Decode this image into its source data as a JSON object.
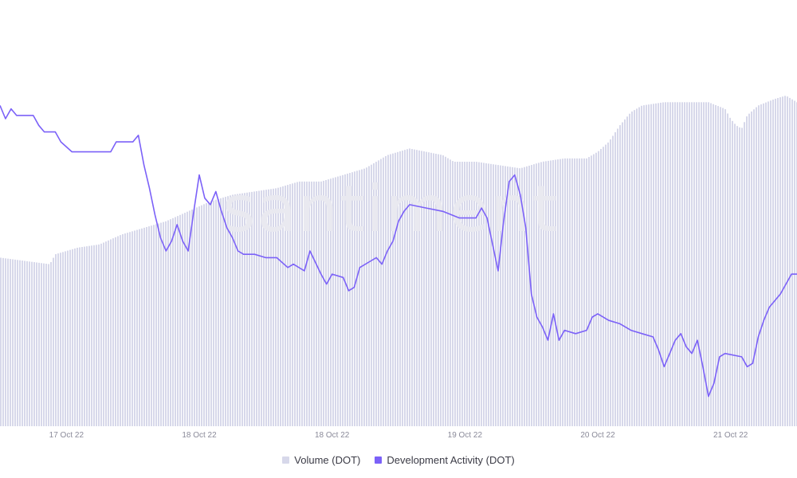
{
  "chart_data": {
    "type": "area",
    "watermark": "santiment",
    "x_ticks": [
      "17 Oct 22",
      "18 Oct 22",
      "18 Oct 22",
      "19 Oct 22",
      "20 Oct 22",
      "21 Oct 22"
    ],
    "x_tick_hours": [
      12,
      36,
      60,
      84,
      108,
      132
    ],
    "x_range_hours": [
      0,
      144
    ],
    "y_axis_labels": "none",
    "grid": false,
    "legend_position": "bottom-center",
    "series": [
      {
        "name": "Volume (DOT)",
        "kind": "bar-area",
        "color": "#d7d8ea",
        "points": [
          [
            0,
            0.51
          ],
          [
            9,
            0.49
          ],
          [
            10,
            0.52
          ],
          [
            14,
            0.54
          ],
          [
            18,
            0.55
          ],
          [
            22,
            0.58
          ],
          [
            26,
            0.6
          ],
          [
            30,
            0.62
          ],
          [
            34,
            0.65
          ],
          [
            38,
            0.68
          ],
          [
            42,
            0.7
          ],
          [
            46,
            0.71
          ],
          [
            50,
            0.72
          ],
          [
            54,
            0.74
          ],
          [
            58,
            0.74
          ],
          [
            62,
            0.76
          ],
          [
            66,
            0.78
          ],
          [
            70,
            0.82
          ],
          [
            74,
            0.84
          ],
          [
            77,
            0.83
          ],
          [
            80,
            0.82
          ],
          [
            82,
            0.8
          ],
          [
            86,
            0.8
          ],
          [
            90,
            0.79
          ],
          [
            94,
            0.78
          ],
          [
            98,
            0.8
          ],
          [
            102,
            0.81
          ],
          [
            106,
            0.81
          ],
          [
            108,
            0.83
          ],
          [
            110,
            0.86
          ],
          [
            112,
            0.91
          ],
          [
            114,
            0.95
          ],
          [
            116,
            0.97
          ],
          [
            120,
            0.98
          ],
          [
            124,
            0.98
          ],
          [
            128,
            0.98
          ],
          [
            131,
            0.96
          ],
          [
            132,
            0.93
          ],
          [
            133,
            0.91
          ],
          [
            134,
            0.9
          ],
          [
            135,
            0.94
          ],
          [
            137,
            0.97
          ],
          [
            140,
            0.99
          ],
          [
            142,
            1.0
          ],
          [
            144,
            0.98
          ]
        ]
      },
      {
        "name": "Development Activity (DOT)",
        "kind": "line",
        "color": "#7b61f8",
        "points": [
          [
            0,
            0.97
          ],
          [
            1,
            0.93
          ],
          [
            2,
            0.96
          ],
          [
            3,
            0.94
          ],
          [
            6,
            0.94
          ],
          [
            7,
            0.91
          ],
          [
            8,
            0.89
          ],
          [
            10,
            0.89
          ],
          [
            11,
            0.86
          ],
          [
            13,
            0.83
          ],
          [
            20,
            0.83
          ],
          [
            21,
            0.86
          ],
          [
            24,
            0.86
          ],
          [
            25,
            0.88
          ],
          [
            26,
            0.79
          ],
          [
            27,
            0.72
          ],
          [
            28,
            0.64
          ],
          [
            29,
            0.57
          ],
          [
            30,
            0.53
          ],
          [
            31,
            0.56
          ],
          [
            32,
            0.61
          ],
          [
            33,
            0.56
          ],
          [
            34,
            0.53
          ],
          [
            35,
            0.65
          ],
          [
            36,
            0.76
          ],
          [
            37,
            0.69
          ],
          [
            38,
            0.67
          ],
          [
            39,
            0.71
          ],
          [
            40,
            0.65
          ],
          [
            41,
            0.6
          ],
          [
            42,
            0.57
          ],
          [
            43,
            0.53
          ],
          [
            44,
            0.52
          ],
          [
            46,
            0.52
          ],
          [
            48,
            0.51
          ],
          [
            50,
            0.51
          ],
          [
            52,
            0.48
          ],
          [
            53,
            0.49
          ],
          [
            55,
            0.47
          ],
          [
            56,
            0.53
          ],
          [
            58,
            0.46
          ],
          [
            59,
            0.43
          ],
          [
            60,
            0.46
          ],
          [
            62,
            0.45
          ],
          [
            63,
            0.41
          ],
          [
            64,
            0.42
          ],
          [
            65,
            0.48
          ],
          [
            67,
            0.5
          ],
          [
            68,
            0.51
          ],
          [
            69,
            0.49
          ],
          [
            70,
            0.53
          ],
          [
            71,
            0.56
          ],
          [
            72,
            0.62
          ],
          [
            73,
            0.65
          ],
          [
            74,
            0.67
          ],
          [
            77,
            0.66
          ],
          [
            80,
            0.65
          ],
          [
            83,
            0.63
          ],
          [
            86,
            0.63
          ],
          [
            87,
            0.66
          ],
          [
            88,
            0.63
          ],
          [
            90,
            0.47
          ],
          [
            91,
            0.62
          ],
          [
            92,
            0.74
          ],
          [
            93,
            0.76
          ],
          [
            94,
            0.7
          ],
          [
            95,
            0.6
          ],
          [
            96,
            0.4
          ],
          [
            97,
            0.33
          ],
          [
            98,
            0.3
          ],
          [
            99,
            0.26
          ],
          [
            100,
            0.34
          ],
          [
            101,
            0.26
          ],
          [
            102,
            0.29
          ],
          [
            104,
            0.28
          ],
          [
            106,
            0.29
          ],
          [
            107,
            0.33
          ],
          [
            108,
            0.34
          ],
          [
            110,
            0.32
          ],
          [
            112,
            0.31
          ],
          [
            114,
            0.29
          ],
          [
            116,
            0.28
          ],
          [
            118,
            0.27
          ],
          [
            119,
            0.23
          ],
          [
            120,
            0.18
          ],
          [
            121,
            0.22
          ],
          [
            122,
            0.26
          ],
          [
            123,
            0.28
          ],
          [
            124,
            0.24
          ],
          [
            125,
            0.22
          ],
          [
            126,
            0.26
          ],
          [
            127,
            0.18
          ],
          [
            128,
            0.09
          ],
          [
            129,
            0.13
          ],
          [
            130,
            0.21
          ],
          [
            131,
            0.22
          ],
          [
            134,
            0.21
          ],
          [
            135,
            0.18
          ],
          [
            136,
            0.19
          ],
          [
            137,
            0.27
          ],
          [
            138,
            0.32
          ],
          [
            139,
            0.36
          ],
          [
            141,
            0.4
          ],
          [
            143,
            0.46
          ],
          [
            144,
            0.46
          ]
        ]
      }
    ]
  },
  "legend": {
    "items": [
      {
        "label": "Volume (DOT)",
        "color": "#d7d8ea"
      },
      {
        "label": "Development Activity (DOT)",
        "color": "#7b61f8"
      }
    ]
  }
}
